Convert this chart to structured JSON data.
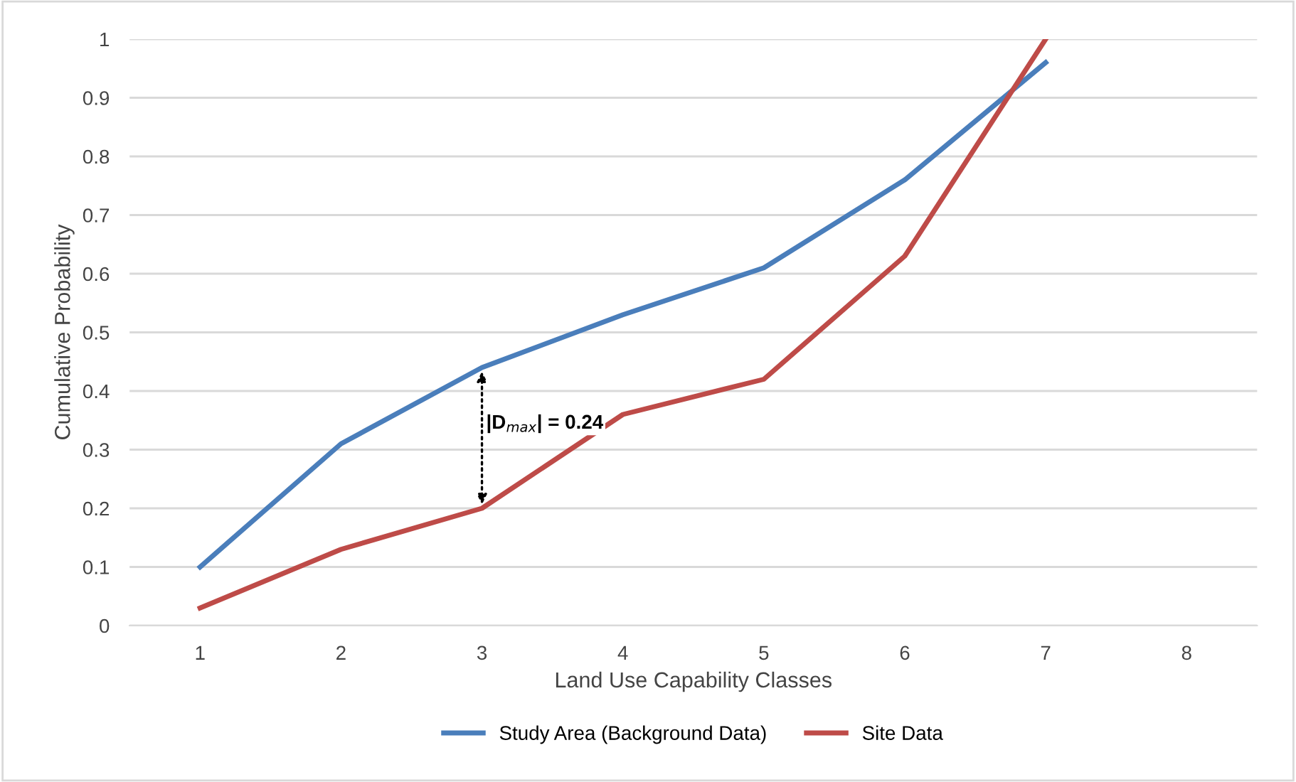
{
  "chart_data": {
    "type": "line",
    "xlabel": "Land Use Capability Classes",
    "ylabel": "Cumulative Probability",
    "categories": [
      "1",
      "2",
      "3",
      "4",
      "5",
      "6",
      "7",
      "8"
    ],
    "series": [
      {
        "name": "Study Area (Background Data)",
        "color": "#4a7ebb",
        "values": [
          0.1,
          0.31,
          0.44,
          0.53,
          0.61,
          0.76,
          0.96,
          null
        ]
      },
      {
        "name": "Site Data",
        "color": "#be4b48",
        "values": [
          0.03,
          0.13,
          0.2,
          0.36,
          0.42,
          0.63,
          1.0,
          null
        ]
      }
    ],
    "ylim": [
      0,
      1
    ],
    "yticks": [
      0,
      0.1,
      0.2,
      0.3,
      0.4,
      0.5,
      0.6,
      0.7,
      0.8,
      0.9,
      1
    ],
    "annotations": [
      "|D$_{max}$| = 0.24"
    ],
    "grid": "y",
    "legend": "bottom",
    "marker": "none",
    "line_style": "solid"
  }
}
